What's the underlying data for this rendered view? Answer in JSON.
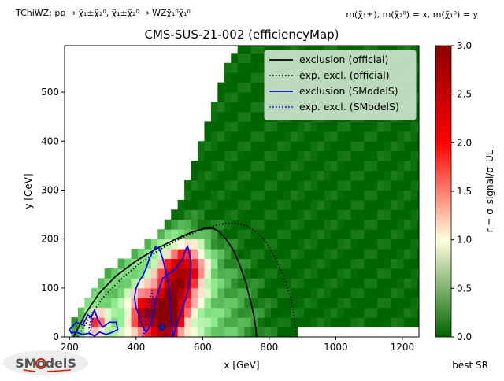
{
  "header": {
    "process": "TChiWZ: pp → χ̃₁±χ̃₂⁰, χ̃₁±χ̃₂⁰ → WZχ̃₁⁰χ̃₁⁰",
    "mass_assignment": "m(χ̃₁±), m(χ̃₂⁰) = x, m(χ̃₁⁰) = y"
  },
  "footer": {
    "best_sr": "best SR"
  },
  "logo": {
    "text": "SModelS"
  },
  "colors": {
    "official": "#000000",
    "smodels": "#0000ff",
    "legend_bg": "#cfe6cf",
    "colormap": [
      "#006400",
      "#90ee90",
      "#ffffe0",
      "#ff9999",
      "#ff0000",
      "#8b0000"
    ]
  },
  "chart_data": {
    "type": "heatmap",
    "title": "CMS-SUS-21-002 (efficiencyMap)",
    "xlabel": "x [GeV]",
    "ylabel": "y [GeV]",
    "xlim": [
      185,
      1250
    ],
    "ylim": [
      0,
      595
    ],
    "xticks": [
      200,
      400,
      600,
      800,
      1000,
      1200
    ],
    "yticks": [
      0,
      100,
      200,
      300,
      400,
      500
    ],
    "colorbar": {
      "label": "r = σ_signal/σ_UL",
      "range": [
        0.0,
        3.0
      ],
      "ticks": [
        "0.0",
        "0.5",
        "1.0",
        "1.5",
        "2.0",
        "2.5",
        "3.0"
      ]
    },
    "legend": {
      "position": "top-right",
      "entries": [
        {
          "label": "exclusion (official)",
          "color": "#000000",
          "style": "solid"
        },
        {
          "label": "exp. excl. (official)",
          "color": "#000000",
          "style": "dotted"
        },
        {
          "label": "exclusion (SModelS)",
          "color": "#0000ff",
          "style": "solid"
        },
        {
          "label": "exp. excl. (SModelS)",
          "color": "#0000ff",
          "style": "dotted"
        }
      ]
    },
    "region": {
      "diagonal_edge": [
        [
          190,
          0
        ],
        [
          215,
          30
        ],
        [
          235,
          60
        ],
        [
          260,
          90
        ],
        [
          290,
          115
        ],
        [
          330,
          140
        ],
        [
          370,
          160
        ],
        [
          410,
          180
        ],
        [
          440,
          195
        ],
        [
          470,
          215
        ],
        [
          500,
          240
        ],
        [
          520,
          270
        ],
        [
          545,
          300
        ],
        [
          570,
          340
        ],
        [
          590,
          380
        ],
        [
          610,
          420
        ],
        [
          630,
          470
        ],
        [
          645,
          500
        ],
        [
          665,
          540
        ],
        [
          685,
          575
        ],
        [
          700,
          595
        ]
      ],
      "bottom_cut_from_x": 880,
      "bottom_cut_y": 12
    },
    "r_hotspots": [
      {
        "x": 490,
        "y": 40,
        "r": 2.6,
        "spread_x": 45,
        "spread_y": 45
      },
      {
        "x": 520,
        "y": 110,
        "r": 1.8,
        "spread_x": 60,
        "spread_y": 60
      },
      {
        "x": 420,
        "y": 50,
        "r": 1.6,
        "spread_x": 35,
        "spread_y": 45
      },
      {
        "x": 280,
        "y": 30,
        "r": 1.3,
        "spread_x": 30,
        "spread_y": 30
      },
      {
        "x": 560,
        "y": 150,
        "r": 1.1,
        "spread_x": 60,
        "spread_y": 50
      }
    ],
    "series": [
      {
        "name": "exclusion (official)",
        "style": "solid",
        "color": "#000000",
        "x": [
          212,
          250,
          290,
          340,
          400,
          460,
          520,
          570,
          610,
          630,
          650,
          670,
          690,
          710,
          730,
          745,
          755,
          760,
          762
        ],
        "y": [
          0,
          50,
          90,
          125,
          155,
          180,
          200,
          215,
          222,
          222,
          215,
          200,
          180,
          150,
          110,
          70,
          40,
          15,
          0
        ]
      },
      {
        "name": "exp. excl. (official)",
        "style": "dotted",
        "color": "#000000",
        "x": [
          225,
          260,
          300,
          350,
          410,
          470,
          530,
          590,
          640,
          670,
          700,
          730,
          760,
          790,
          820,
          845,
          865,
          875,
          880
        ],
        "y": [
          0,
          40,
          80,
          115,
          150,
          178,
          200,
          218,
          228,
          232,
          232,
          228,
          215,
          195,
          160,
          120,
          80,
          40,
          5
        ]
      },
      {
        "name": "exclusion (SModelS)",
        "style": "solid",
        "color": "#0000ff",
        "x": [
          510,
          520,
          530,
          540,
          550,
          560,
          565,
          560,
          555,
          550,
          540,
          520,
          500,
          480,
          470,
          460,
          455,
          450,
          440,
          430,
          420,
          410,
          400,
          395,
          400,
          410,
          420,
          430,
          440,
          450,
          460,
          470,
          480,
          490,
          500,
          505,
          510
        ],
        "y": [
          0,
          20,
          40,
          60,
          80,
          110,
          150,
          170,
          185,
          180,
          160,
          140,
          130,
          120,
          100,
          80,
          60,
          40,
          20,
          10,
          20,
          40,
          60,
          80,
          100,
          115,
          125,
          140,
          160,
          175,
          185,
          180,
          160,
          130,
          100,
          50,
          0
        ]
      },
      {
        "name": "exclusion (SModelS) left",
        "style": "solid",
        "color": "#0000ff",
        "x": [
          200,
          220,
          240,
          255,
          265,
          275,
          285,
          300,
          320,
          340,
          345,
          330,
          310,
          290,
          275,
          260,
          240,
          220,
          205,
          200
        ],
        "y": [
          15,
          30,
          25,
          45,
          40,
          55,
          35,
          20,
          30,
          30,
          15,
          10,
          5,
          10,
          2,
          8,
          5,
          10,
          8,
          15
        ]
      },
      {
        "name": "exp. excl. (SModelS)",
        "style": "dotted",
        "color": "#0000ff",
        "x": [
          420,
          430,
          440,
          445,
          450,
          448,
          440,
          430,
          420
        ],
        "y": [
          0,
          20,
          40,
          60,
          80,
          95,
          75,
          40,
          0
        ]
      },
      {
        "name": "exp. excl. (SModelS) small",
        "style": "dotted",
        "color": "#0000ff",
        "x": [
          260,
          265,
          270,
          268,
          262,
          258,
          260
        ],
        "y": [
          5,
          20,
          35,
          50,
          30,
          15,
          5
        ]
      }
    ],
    "markers": [
      {
        "x": 478,
        "y": 20,
        "shape": "circle"
      },
      {
        "x": 478,
        "y": 20,
        "shape": "square"
      }
    ]
  }
}
